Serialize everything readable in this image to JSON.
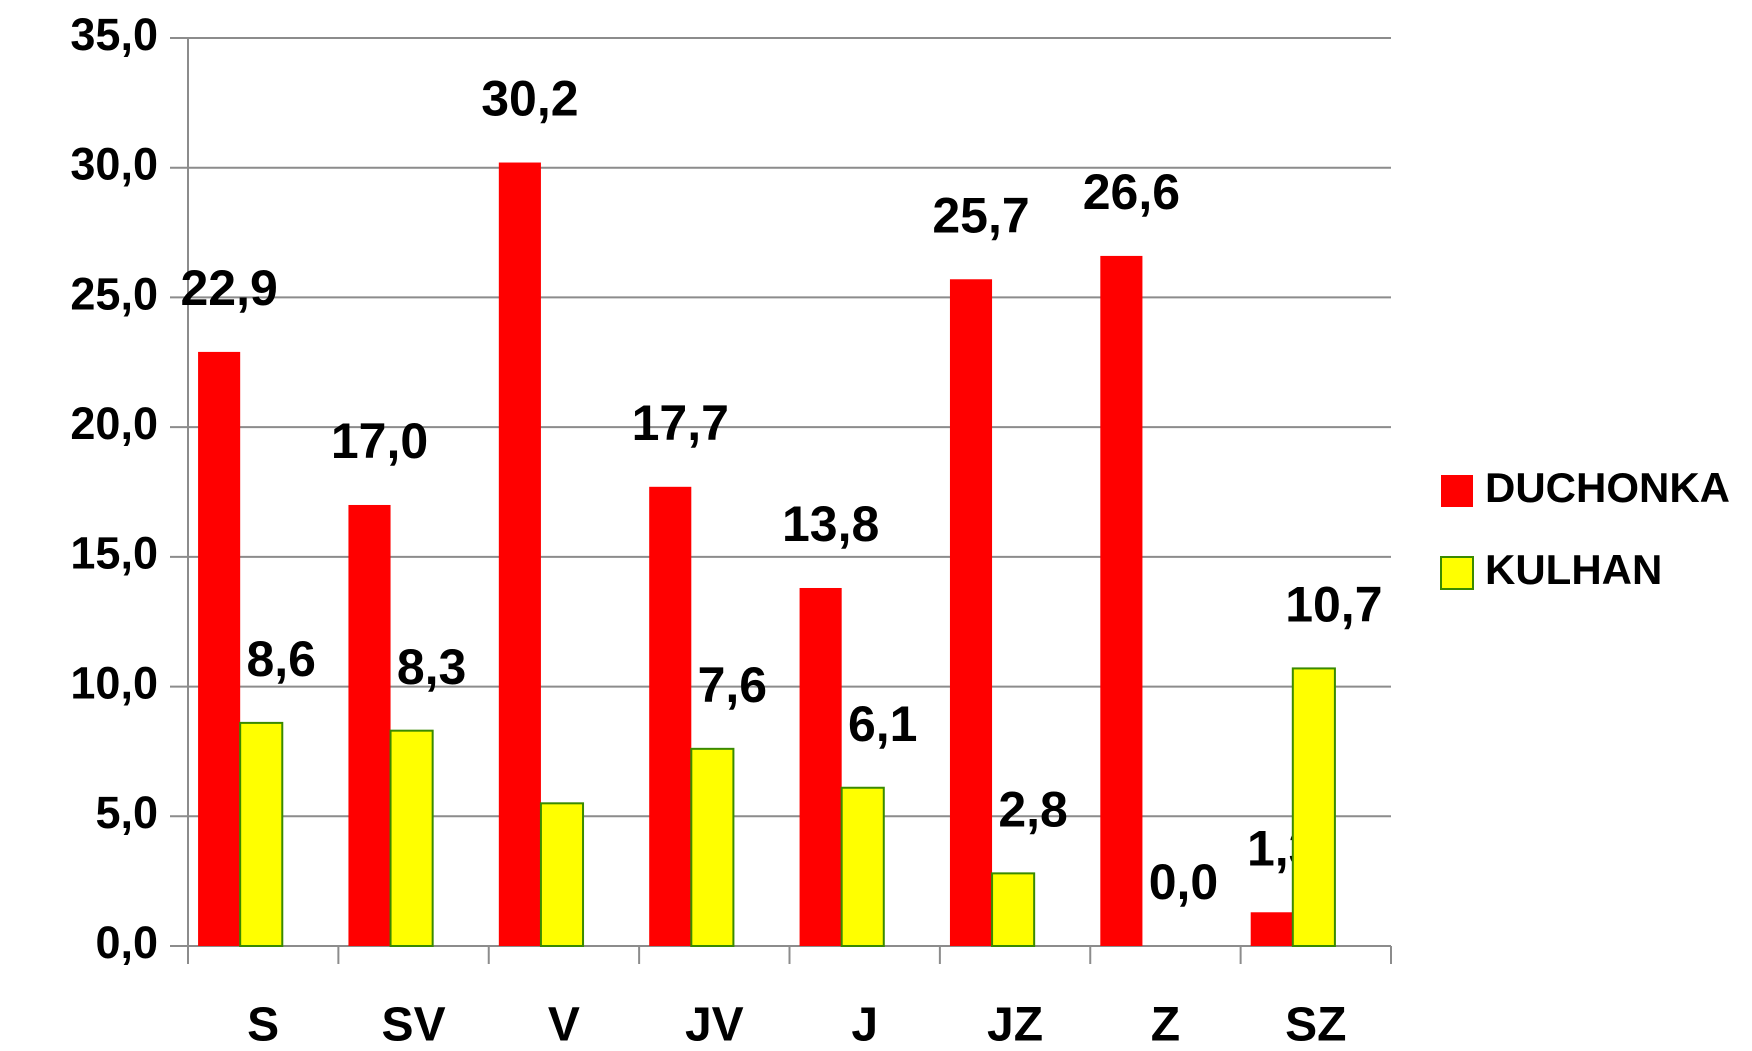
{
  "chart_data": {
    "type": "bar",
    "categories": [
      "S",
      "SV",
      "V",
      "JV",
      "J",
      "JZ",
      "Z",
      "SZ"
    ],
    "series": [
      {
        "name": "DUCHONKA",
        "color": "#ff0000",
        "values": [
          22.9,
          17.0,
          30.2,
          17.7,
          13.8,
          25.7,
          26.6,
          1.3
        ],
        "value_labels": [
          "22,9",
          "17,0",
          "30,2",
          "17,7",
          "13,8",
          "25,7",
          "26,6",
          "1,3"
        ]
      },
      {
        "name": "KULHAN",
        "color": "#ffff00",
        "values": [
          8.6,
          8.3,
          5.5,
          7.6,
          6.1,
          2.8,
          0.0,
          10.7
        ],
        "value_labels": [
          "8,6",
          "8,3",
          null,
          "7,6",
          "6,1",
          "2,8",
          "0,0",
          "10,7"
        ]
      }
    ],
    "ylim": [
      0,
      35
    ],
    "yticks": [
      {
        "value": 0,
        "label": "0,0"
      },
      {
        "value": 5,
        "label": "5,0"
      },
      {
        "value": 10,
        "label": "10,0"
      },
      {
        "value": 15,
        "label": "15,0"
      },
      {
        "value": 20,
        "label": "20,0"
      },
      {
        "value": 25,
        "label": "25,0"
      },
      {
        "value": 30,
        "label": "30,0"
      },
      {
        "value": 35,
        "label": "35,0"
      }
    ],
    "grid": true,
    "legend": "right"
  }
}
